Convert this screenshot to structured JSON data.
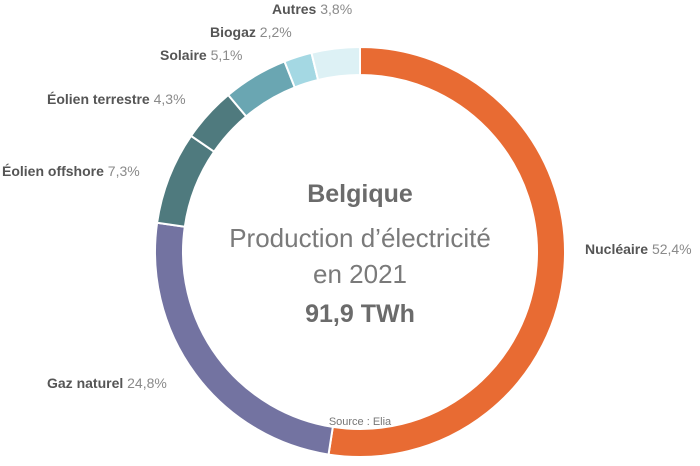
{
  "center": {
    "country": "Belgique",
    "line1": "Production d’électricité",
    "line2": "en 2021",
    "total": "91,9 TWh"
  },
  "source": "Source : Elia",
  "chart_data": {
    "type": "pie",
    "donut": true,
    "title": "Belgique – Production d’électricité en 2021",
    "total": "91,9 TWh",
    "slices": [
      {
        "label": "Nucléaire",
        "value": 52.4,
        "value_text": "52,4%",
        "color": "#e86b33"
      },
      {
        "label": "Gaz naturel",
        "value": 24.8,
        "value_text": "24,8%",
        "color": "#7373a1"
      },
      {
        "label": "Éolien offshore",
        "value": 7.3,
        "value_text": "7,3%",
        "color": "#4f7a7e"
      },
      {
        "label": "Éolien terrestre",
        "value": 4.3,
        "value_text": "4,3%",
        "color": "#4f7a7e"
      },
      {
        "label": "Solaire",
        "value": 5.1,
        "value_text": "5,1%",
        "color": "#6aa6b2"
      },
      {
        "label": "Biogaz",
        "value": 2.2,
        "value_text": "2,2%",
        "color": "#a4d8e3"
      },
      {
        "label": "Autres",
        "value": 3.8,
        "value_text": "3,8%",
        "color": "#ddf1f5"
      }
    ]
  }
}
